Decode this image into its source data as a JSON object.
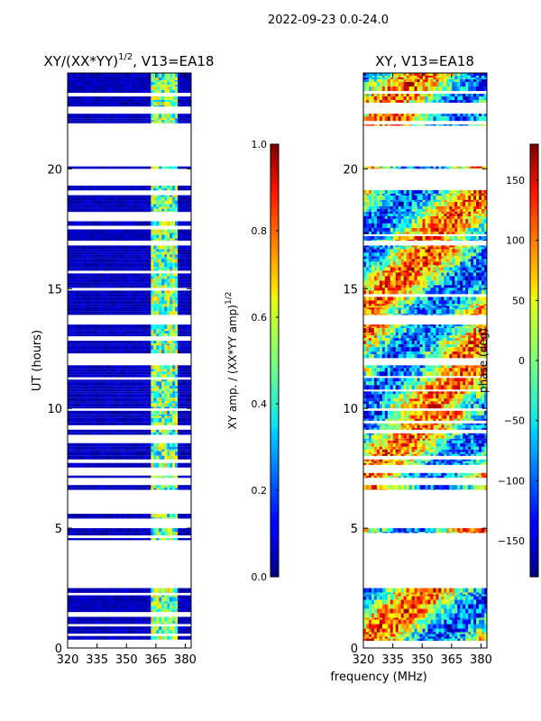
{
  "chart_data": [
    {
      "type": "heatmap",
      "id": "left",
      "suptitle": "2022-09-23 0.0-24.0",
      "title": "XY/(XX*YY)^1/2, V13=EA18",
      "title_main": "XY/(XX*YY)",
      "title_exp": "1/2",
      "title_tail": ", V13=EA18",
      "ylabel": "UT (hours)",
      "xlim": [
        320,
        383
      ],
      "ylim": [
        0,
        24
      ],
      "xticks": [
        "320",
        "335",
        "350",
        "365",
        "380"
      ],
      "xtick_values": [
        320,
        335,
        350,
        365,
        380
      ],
      "yticks": [
        "0",
        "5",
        "10",
        "15",
        "20"
      ],
      "ytick_values": [
        0,
        5,
        10,
        15,
        20
      ],
      "colorbar": {
        "label": "XY amp. / (XX*YY amp)^1/2",
        "label_main": "XY amp. / (XX*YY amp)",
        "label_exp": "1/2",
        "range": [
          0.0,
          1.0
        ],
        "ticks": [
          "0.0",
          "0.2",
          "0.4",
          "0.6",
          "0.8",
          "1.0"
        ],
        "tick_values": [
          0.0,
          0.2,
          0.4,
          0.6,
          0.8,
          1.0
        ]
      },
      "data_hours": [
        [
          0.3,
          0.5
        ],
        [
          0.6,
          0.9
        ],
        [
          1.0,
          1.3
        ],
        [
          1.5,
          2.2
        ],
        [
          2.3,
          2.5
        ],
        [
          4.5,
          5.0
        ],
        [
          5.4,
          5.6
        ],
        [
          6.6,
          6.8
        ],
        [
          7.1,
          8.7
        ],
        [
          8.9,
          9.9
        ],
        [
          10.0,
          11.2
        ],
        [
          11.3,
          11.8
        ],
        [
          12.1,
          13.5
        ],
        [
          13.9,
          16.8
        ],
        [
          17.0,
          18.0
        ],
        [
          18.2,
          18.9
        ],
        [
          19.1,
          19.3
        ],
        [
          20.0,
          20.1
        ],
        [
          21.9,
          22.3
        ],
        [
          22.6,
          24.0
        ]
      ],
      "noise_band_mhz": [
        363,
        376
      ]
    },
    {
      "type": "heatmap",
      "id": "right",
      "title": "XY, V13=EA18",
      "xlabel": "frequency (MHz)",
      "xlim": [
        320,
        383
      ],
      "ylim": [
        0,
        24
      ],
      "xticks": [
        "320",
        "335",
        "350",
        "365",
        "380"
      ],
      "xtick_values": [
        320,
        335,
        350,
        365,
        380
      ],
      "yticks": [
        "0",
        "5",
        "10",
        "15",
        "20"
      ],
      "ytick_values": [
        0,
        5,
        10,
        15,
        20
      ],
      "colorbar": {
        "label": "phase (deg)",
        "range": [
          -180,
          180
        ],
        "ticks": [
          "−150",
          "−100",
          "−50",
          "0",
          "50",
          "100",
          "150"
        ],
        "tick_values": [
          -150,
          -100,
          -50,
          0,
          50,
          100,
          150
        ]
      },
      "data_hours": [
        [
          0.3,
          2.5
        ],
        [
          4.8,
          5.0
        ],
        [
          6.6,
          6.8
        ],
        [
          7.1,
          9.9
        ],
        [
          10.0,
          11.8
        ],
        [
          12.1,
          13.5
        ],
        [
          13.9,
          16.8
        ],
        [
          17.0,
          19.3
        ],
        [
          20.0,
          20.1
        ],
        [
          21.8,
          22.3
        ],
        [
          22.6,
          24.0
        ]
      ]
    }
  ]
}
